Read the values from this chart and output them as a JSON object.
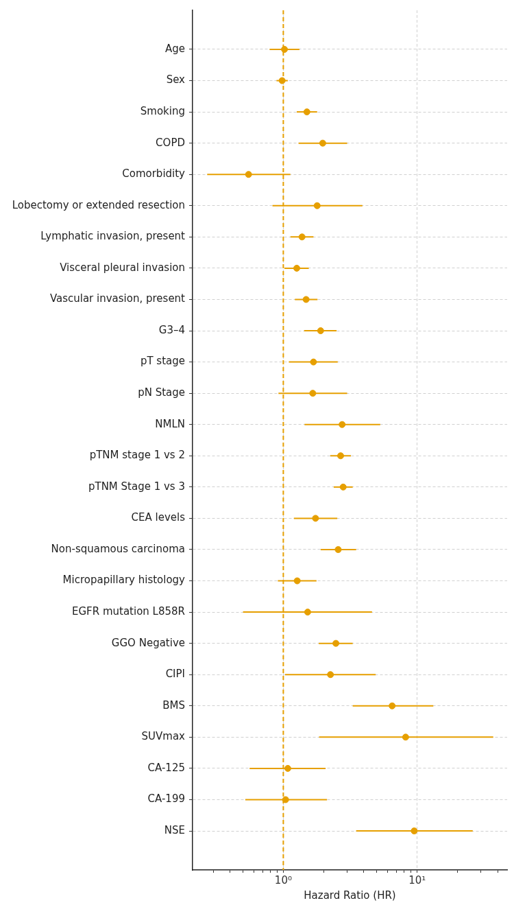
{
  "chart_data": {
    "type": "scatter",
    "orientation": "horizontal",
    "xlabel": "Hazard Ratio (HR)",
    "categories": [
      "Age",
      "Sex",
      "Smoking",
      "COPD",
      "Comorbidity",
      "Lobectomy or extended resection",
      "Lymphatic invasion, present",
      "Visceral pleural invasion",
      "Vascular invasion, present",
      "G3–4",
      "pT stage",
      "pN Stage",
      "NMLN",
      "pTNM stage 1 vs 2",
      "pTNM Stage 1 vs 3",
      "CEA levels",
      "Non-squamous carcinoma",
      "Micropapillary histology",
      "EGFR mutation L858R",
      "GGO Negative",
      "CIPI",
      "BMS",
      "SUVmax",
      "CA-125",
      "CA-199",
      "NSE"
    ],
    "values": [
      1.02,
      0.98,
      1.5,
      1.97,
      0.55,
      1.79,
      1.38,
      1.26,
      1.48,
      1.9,
      1.68,
      1.66,
      2.75,
      2.68,
      2.8,
      1.74,
      2.57,
      1.27,
      1.52,
      2.47,
      2.25,
      6.5,
      8.2,
      1.08,
      1.04,
      9.5
    ],
    "errors": [
      [
        0.79,
        1.32
      ],
      [
        0.89,
        1.08
      ],
      [
        1.26,
        1.79
      ],
      [
        1.3,
        3.0
      ],
      [
        0.27,
        1.13
      ],
      [
        0.83,
        3.9
      ],
      [
        1.13,
        1.68
      ],
      [
        1.02,
        1.55
      ],
      [
        1.22,
        1.8
      ],
      [
        1.43,
        2.5
      ],
      [
        1.1,
        2.55
      ],
      [
        0.92,
        3.0
      ],
      [
        1.44,
        5.3
      ],
      [
        2.24,
        3.2
      ],
      [
        2.38,
        3.3
      ],
      [
        1.2,
        2.53
      ],
      [
        1.9,
        3.5
      ],
      [
        0.91,
        1.77
      ],
      [
        0.5,
        4.6
      ],
      [
        1.84,
        3.3
      ],
      [
        1.03,
        4.9
      ],
      [
        3.3,
        13.2
      ],
      [
        1.85,
        37
      ],
      [
        0.56,
        2.07
      ],
      [
        0.52,
        2.12
      ],
      [
        3.5,
        26
      ]
    ],
    "color": "#e69f00",
    "marker": "circle",
    "xlim": [
      0.21,
      47
    ],
    "log": "x",
    "xticks": [
      {
        "value": 0.3,
        "label": null
      },
      {
        "value": 0.4,
        "label": null
      },
      {
        "value": 0.5,
        "label": null
      },
      {
        "value": 0.6,
        "label": null
      },
      {
        "value": 0.7,
        "label": null
      },
      {
        "value": 0.8,
        "label": null
      },
      {
        "value": 0.9,
        "label": null
      },
      {
        "value": 1,
        "label": "10⁰"
      },
      {
        "value": 2,
        "label": null
      },
      {
        "value": 3,
        "label": null
      },
      {
        "value": 4,
        "label": null
      },
      {
        "value": 5,
        "label": null
      },
      {
        "value": 6,
        "label": null
      },
      {
        "value": 7,
        "label": null
      },
      {
        "value": 8,
        "label": null
      },
      {
        "value": 9,
        "label": null
      },
      {
        "value": 10,
        "label": "10¹"
      },
      {
        "value": 20,
        "label": null
      },
      {
        "value": 30,
        "label": null
      },
      {
        "value": 40,
        "label": null
      }
    ],
    "ref_lines": [
      {
        "axis": "x",
        "value": 1,
        "color": "#e69f00",
        "line_style": "dashed"
      }
    ],
    "grid": true,
    "legend": false
  }
}
